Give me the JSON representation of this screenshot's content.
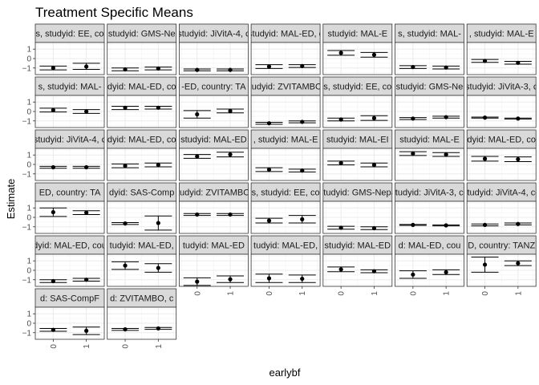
{
  "chart_data": {
    "type": "scatter",
    "title": "Treatment Specific Means",
    "xlabel": "earlybf",
    "ylabel": "Estimate",
    "categories": [
      "0",
      "1"
    ],
    "yticks": [
      1,
      0,
      -1
    ],
    "ylim": [
      -1.7,
      1.7
    ],
    "grid": true,
    "panels": [
      {
        "strip": "s, studyid: EE, co",
        "values": [
          {
            "est": -1.0,
            "lo": -1.2,
            "hi": -0.8
          },
          {
            "est": -0.85,
            "lo": -1.15,
            "hi": -0.5
          }
        ]
      },
      {
        "strip": "studyid: GMS-Ne",
        "values": [
          {
            "est": -1.15,
            "lo": -1.3,
            "hi": -1.0
          },
          {
            "est": -1.05,
            "lo": -1.2,
            "hi": -0.9
          }
        ]
      },
      {
        "strip": "studyid: JiVitA-4, c",
        "values": [
          {
            "est": -1.2,
            "lo": -1.3,
            "hi": -1.1
          },
          {
            "est": -1.2,
            "lo": -1.3,
            "hi": -1.1
          }
        ]
      },
      {
        "strip": "studyid: MAL-ED, c",
        "values": [
          {
            "est": -0.85,
            "lo": -1.05,
            "hi": -0.65
          },
          {
            "est": -0.8,
            "lo": -0.95,
            "hi": -0.65
          }
        ]
      },
      {
        "strip": "studyid: MAL-E",
        "values": [
          {
            "est": 0.6,
            "lo": 0.35,
            "hi": 0.85
          },
          {
            "est": 0.4,
            "lo": 0.15,
            "hi": 0.65
          }
        ]
      },
      {
        "strip": "s, studyid: MAL-",
        "values": [
          {
            "est": -0.9,
            "lo": -1.05,
            "hi": -0.75
          },
          {
            "est": -0.95,
            "lo": -1.1,
            "hi": -0.8
          }
        ]
      },
      {
        "strip": ", studyid: MAL-E",
        "values": [
          {
            "est": -0.25,
            "lo": -0.4,
            "hi": -0.1
          },
          {
            "est": -0.45,
            "lo": -0.6,
            "hi": -0.3
          }
        ]
      },
      {
        "strip": "s, studyid: MAL-",
        "values": [
          {
            "est": 0.15,
            "lo": -0.05,
            "hi": 0.35
          },
          {
            "est": 0.0,
            "lo": -0.2,
            "hi": 0.2
          }
        ]
      },
      {
        "strip": "dyid: MAL-ED, co",
        "values": [
          {
            "est": 0.4,
            "lo": 0.2,
            "hi": 0.55
          },
          {
            "est": 0.4,
            "lo": 0.25,
            "hi": 0.55
          }
        ]
      },
      {
        "strip": "-ED, country: TA",
        "values": [
          {
            "est": -0.3,
            "lo": -0.7,
            "hi": 0.1
          },
          {
            "est": 0.05,
            "lo": -0.15,
            "hi": 0.25
          }
        ]
      },
      {
        "strip": "tudyid: ZVITAMBO",
        "values": [
          {
            "est": -1.25,
            "lo": -1.35,
            "hi": -1.15
          },
          {
            "est": -1.1,
            "lo": -1.2,
            "hi": -1.0
          }
        ]
      },
      {
        "strip": "s, studyid: EE, co",
        "values": [
          {
            "est": -0.85,
            "lo": -1.0,
            "hi": -0.7
          },
          {
            "est": -0.7,
            "lo": -0.95,
            "hi": -0.45
          }
        ]
      },
      {
        "strip": "studyid: GMS-Ne",
        "values": [
          {
            "est": -0.75,
            "lo": -0.85,
            "hi": -0.65
          },
          {
            "est": -0.6,
            "lo": -0.7,
            "hi": -0.5
          }
        ]
      },
      {
        "strip": "studyid: JiVitA-3, c",
        "values": [
          {
            "est": -0.65,
            "lo": -0.7,
            "hi": -0.6
          },
          {
            "est": -0.75,
            "lo": -0.8,
            "hi": -0.7
          }
        ]
      },
      {
        "strip": "studyid: JiVitA-4, c",
        "values": [
          {
            "est": -0.3,
            "lo": -0.4,
            "hi": -0.2
          },
          {
            "est": -0.3,
            "lo": -0.4,
            "hi": -0.2
          }
        ]
      },
      {
        "strip": "dyid: MAL-ED, co",
        "values": [
          {
            "est": -0.15,
            "lo": -0.35,
            "hi": 0.05
          },
          {
            "est": -0.05,
            "lo": -0.25,
            "hi": 0.15
          }
        ]
      },
      {
        "strip": "studyid: MAL-ED",
        "values": [
          {
            "est": 0.85,
            "lo": 0.65,
            "hi": 1.05
          },
          {
            "est": 1.05,
            "lo": 0.8,
            "hi": 1.3
          }
        ]
      },
      {
        "strip": ", studyid: MAL-E",
        "values": [
          {
            "est": -0.55,
            "lo": -0.75,
            "hi": -0.35
          },
          {
            "est": -0.65,
            "lo": -0.8,
            "hi": -0.5
          }
        ]
      },
      {
        "strip": "studyid: MAL-EI",
        "values": [
          {
            "est": 0.15,
            "lo": -0.05,
            "hi": 0.35
          },
          {
            "est": -0.05,
            "lo": -0.25,
            "hi": 0.15
          }
        ]
      },
      {
        "strip": "studyid: MAL-E",
        "values": [
          {
            "est": 1.15,
            "lo": 0.95,
            "hi": 1.35
          },
          {
            "est": 1.05,
            "lo": 0.85,
            "hi": 1.25
          }
        ]
      },
      {
        "strip": "dyid: MAL-ED, co",
        "values": [
          {
            "est": 0.6,
            "lo": 0.35,
            "hi": 0.85
          },
          {
            "est": 0.55,
            "lo": 0.3,
            "hi": 0.8
          }
        ]
      },
      {
        "strip": "ED, country: TA",
        "values": [
          {
            "est": 0.55,
            "lo": 0.1,
            "hi": 1.0
          },
          {
            "est": 0.5,
            "lo": 0.3,
            "hi": 0.7
          }
        ]
      },
      {
        "strip": "dyid: SAS-Comp",
        "values": [
          {
            "est": -0.65,
            "lo": -0.75,
            "hi": -0.55
          },
          {
            "est": -0.6,
            "lo": -1.35,
            "hi": 0.15
          }
        ]
      },
      {
        "strip": "tudyid: ZVITAMBO",
        "values": [
          {
            "est": 0.3,
            "lo": 0.2,
            "hi": 0.4
          },
          {
            "est": 0.3,
            "lo": 0.2,
            "hi": 0.4
          }
        ]
      },
      {
        "strip": "s, studyid: EE, co",
        "values": [
          {
            "est": -0.35,
            "lo": -0.6,
            "hi": -0.1
          },
          {
            "est": -0.2,
            "lo": -0.6,
            "hi": 0.2
          }
        ]
      },
      {
        "strip": "studyid: GMS-Nepa",
        "values": [
          {
            "est": -1.1,
            "lo": -1.25,
            "hi": -0.95
          },
          {
            "est": -1.15,
            "lo": -1.3,
            "hi": -1.0
          }
        ]
      },
      {
        "strip": "studyid: JiVitA-3, co",
        "values": [
          {
            "est": -0.8,
            "lo": -0.85,
            "hi": -0.75
          },
          {
            "est": -0.85,
            "lo": -0.9,
            "hi": -0.8
          }
        ]
      },
      {
        "strip": "studyid: JiVitA-4, co",
        "values": [
          {
            "est": -0.8,
            "lo": -0.9,
            "hi": -0.7
          },
          {
            "est": -0.7,
            "lo": -0.8,
            "hi": -0.6
          }
        ]
      },
      {
        "strip": "dyid: MAL-ED, cou",
        "values": [
          {
            "est": -1.15,
            "lo": -1.3,
            "hi": -1.0
          },
          {
            "est": -1.0,
            "lo": -1.15,
            "hi": -0.85
          }
        ]
      },
      {
        "strip": "tudyid: MAL-ED,",
        "values": [
          {
            "est": 0.5,
            "lo": 0.1,
            "hi": 0.9
          },
          {
            "est": 0.25,
            "lo": -0.2,
            "hi": 0.7
          }
        ]
      },
      {
        "strip": "tudyid: MAL-ED",
        "values": [
          {
            "est": -1.2,
            "lo": -1.6,
            "hi": -0.8
          },
          {
            "est": -0.95,
            "lo": -1.3,
            "hi": -0.6
          }
        ]
      },
      {
        "strip": "tudyid: MAL-ED,",
        "values": [
          {
            "est": -0.85,
            "lo": -1.3,
            "hi": -0.4
          },
          {
            "est": -0.9,
            "lo": -1.3,
            "hi": -0.5
          }
        ]
      },
      {
        "strip": "studyid: MAL-ED",
        "values": [
          {
            "est": 0.1,
            "lo": -0.15,
            "hi": 0.35
          },
          {
            "est": -0.1,
            "lo": -0.25,
            "hi": 0.05
          }
        ]
      },
      {
        "strip": "d: MAL-ED, cou",
        "values": [
          {
            "est": -0.45,
            "lo": -0.85,
            "hi": -0.05
          },
          {
            "est": -0.2,
            "lo": -0.45,
            "hi": 0.05
          }
        ]
      },
      {
        "strip": "D, country: TANZ",
        "values": [
          {
            "est": 0.6,
            "lo": -0.2,
            "hi": 1.4
          },
          {
            "est": 0.75,
            "lo": 0.5,
            "hi": 1.0
          }
        ]
      },
      {
        "strip": "d: SAS-CompF",
        "values": [
          {
            "est": -0.7,
            "lo": -0.85,
            "hi": -0.55
          },
          {
            "est": -0.8,
            "lo": -1.2,
            "hi": -0.4
          }
        ]
      },
      {
        "strip": "d: ZVITAMBO, c",
        "values": [
          {
            "est": -0.65,
            "lo": -0.75,
            "hi": -0.55
          },
          {
            "est": -0.55,
            "lo": -0.65,
            "hi": -0.45
          }
        ]
      }
    ]
  }
}
